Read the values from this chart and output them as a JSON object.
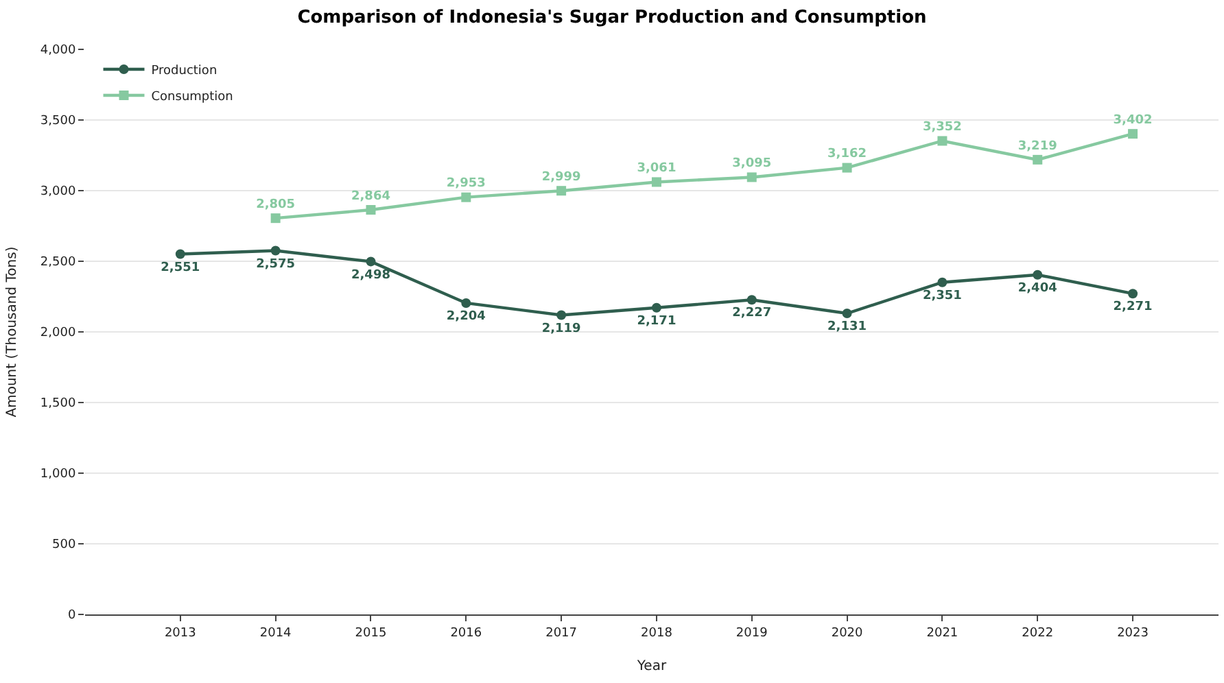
{
  "chart_data": {
    "type": "line",
    "title": "Comparison of Indonesia's Sugar Production and Consumption",
    "xlabel": "Year",
    "ylabel": "Amount (Thousand Tons)",
    "categories": [
      "2013",
      "2014",
      "2015",
      "2016",
      "2017",
      "2018",
      "2019",
      "2020",
      "2021",
      "2022",
      "2023"
    ],
    "series": [
      {
        "name": "Production",
        "color": "#2f5e4e",
        "marker": "circle",
        "values": [
          2551,
          2575,
          2498,
          2204,
          2119,
          2171,
          2227,
          2131,
          2351,
          2404,
          2271
        ],
        "value_labels": [
          "2,551",
          "2,575",
          "2,498",
          "2,204",
          "2,119",
          "2,171",
          "2,227",
          "2,131",
          "2,351",
          "2,404",
          "2,271"
        ]
      },
      {
        "name": "Consumption",
        "color": "#86c9a0",
        "marker": "square",
        "values": [
          null,
          2805,
          2864,
          2953,
          2999,
          3061,
          3095,
          3162,
          3352,
          3219,
          3402
        ],
        "value_labels": [
          null,
          "2,805",
          "2,864",
          "2,953",
          "2,999",
          "3,061",
          "3,095",
          "3,162",
          "3,352",
          "3,219",
          "3,402"
        ]
      }
    ],
    "ylim": [
      0,
      4000
    ],
    "yticks": [
      {
        "value": 0,
        "label": "0"
      },
      {
        "value": 500,
        "label": "500"
      },
      {
        "value": 1000,
        "label": "1,000"
      },
      {
        "value": 1500,
        "label": "1,500"
      },
      {
        "value": 2000,
        "label": "2,000"
      },
      {
        "value": 2500,
        "label": "2,500"
      },
      {
        "value": 3000,
        "label": "3,000"
      },
      {
        "value": 3500,
        "label": "3,500"
      },
      {
        "value": 4000,
        "label": "4,000"
      }
    ],
    "grid": "y",
    "legend": "top left",
    "line_style": "solid"
  }
}
